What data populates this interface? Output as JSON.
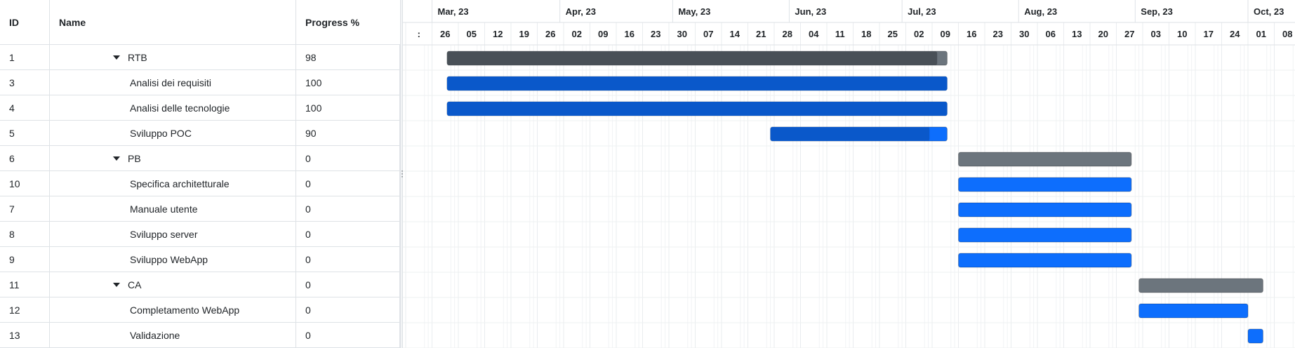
{
  "grid": {
    "headers": {
      "id": "ID",
      "name": "Name",
      "progress": "Progress %"
    },
    "rows": [
      {
        "id": "1",
        "name": "RTB",
        "progress": "98",
        "level": 0,
        "group": true
      },
      {
        "id": "3",
        "name": "Analisi dei requisiti",
        "progress": "100",
        "level": 1,
        "group": false
      },
      {
        "id": "4",
        "name": "Analisi delle tecnologie",
        "progress": "100",
        "level": 1,
        "group": false
      },
      {
        "id": "5",
        "name": "Sviluppo POC",
        "progress": "90",
        "level": 1,
        "group": false
      },
      {
        "id": "6",
        "name": "PB",
        "progress": "0",
        "level": 0,
        "group": true
      },
      {
        "id": "10",
        "name": "Specifica architetturale",
        "progress": "0",
        "level": 1,
        "group": false
      },
      {
        "id": "7",
        "name": "Manuale utente",
        "progress": "0",
        "level": 1,
        "group": false
      },
      {
        "id": "8",
        "name": "Sviluppo server",
        "progress": "0",
        "level": 1,
        "group": false
      },
      {
        "id": "9",
        "name": "Sviluppo WebApp",
        "progress": "0",
        "level": 1,
        "group": false
      },
      {
        "id": "11",
        "name": "CA",
        "progress": "0",
        "level": 0,
        "group": true
      },
      {
        "id": "12",
        "name": "Completamento WebApp",
        "progress": "0",
        "level": 1,
        "group": false
      },
      {
        "id": "13",
        "name": "Validazione",
        "progress": "0",
        "level": 1,
        "group": false
      }
    ]
  },
  "colors": {
    "group_bar": "#6c757d",
    "group_progress": "#495057",
    "task_bar": "#0d6efd",
    "task_progress": "#0a58ca",
    "grid_line": "#e9ecef",
    "weekend_fill": "#f8f9fa"
  },
  "chart_data": {
    "type": "gantt",
    "timeline": {
      "start": "2023-02-19",
      "unit": "week",
      "months": [
        {
          "label": "Mar, 23",
          "start": "2023-02-26",
          "end": "2023-03-31"
        },
        {
          "label": "Apr, 23",
          "start": "2023-04-01",
          "end": "2023-04-30"
        },
        {
          "label": "May, 23",
          "start": "2023-05-01",
          "end": "2023-05-31"
        },
        {
          "label": "Jun, 23",
          "start": "2023-06-01",
          "end": "2023-06-30"
        },
        {
          "label": "Jul, 23",
          "start": "2023-07-01",
          "end": "2023-07-31"
        },
        {
          "label": "Aug, 23",
          "start": "2023-08-01",
          "end": "2023-08-31"
        },
        {
          "label": "Sep, 23",
          "start": "2023-09-01",
          "end": "2023-09-30"
        },
        {
          "label": "Oct, 23",
          "start": "2023-10-01",
          "end": "2023-10-14"
        }
      ],
      "week_ticks": [
        "2023-02-19",
        "2023-02-26",
        "2023-03-05",
        "2023-03-12",
        "2023-03-19",
        "2023-03-26",
        "2023-04-02",
        "2023-04-09",
        "2023-04-16",
        "2023-04-23",
        "2023-04-30",
        "2023-05-07",
        "2023-05-14",
        "2023-05-21",
        "2023-05-28",
        "2023-06-04",
        "2023-06-11",
        "2023-06-18",
        "2023-06-25",
        "2023-07-02",
        "2023-07-09",
        "2023-07-16",
        "2023-07-23",
        "2023-07-30",
        "2023-08-06",
        "2023-08-13",
        "2023-08-20",
        "2023-08-27",
        "2023-09-03",
        "2023-09-10",
        "2023-09-17",
        "2023-09-24",
        "2023-10-01",
        "2023-10-08"
      ],
      "week_labels": [
        ":",
        "26",
        "05",
        "12",
        "19",
        "26",
        "02",
        "09",
        "16",
        "23",
        "30",
        "07",
        "14",
        "21",
        "28",
        "04",
        "11",
        "18",
        "25",
        "02",
        "09",
        "16",
        "23",
        "30",
        "06",
        "13",
        "20",
        "27",
        "03",
        "10",
        "17",
        "24",
        "01",
        "08"
      ]
    },
    "tasks": [
      {
        "id": "1",
        "name": "RTB",
        "start": "2023-03-02",
        "end": "2023-07-13",
        "progress": 98,
        "group": true
      },
      {
        "id": "3",
        "name": "Analisi dei requisiti",
        "start": "2023-03-02",
        "end": "2023-07-13",
        "progress": 100,
        "group": false
      },
      {
        "id": "4",
        "name": "Analisi delle tecnologie",
        "start": "2023-03-02",
        "end": "2023-07-13",
        "progress": 100,
        "group": false
      },
      {
        "id": "5",
        "name": "Sviluppo POC",
        "start": "2023-05-27",
        "end": "2023-07-13",
        "progress": 90,
        "group": false
      },
      {
        "id": "6",
        "name": "PB",
        "start": "2023-07-16",
        "end": "2023-08-31",
        "progress": 0,
        "group": true
      },
      {
        "id": "10",
        "name": "Specifica architetturale",
        "start": "2023-07-16",
        "end": "2023-08-31",
        "progress": 0,
        "group": false
      },
      {
        "id": "7",
        "name": "Manuale utente",
        "start": "2023-07-16",
        "end": "2023-08-31",
        "progress": 0,
        "group": false
      },
      {
        "id": "8",
        "name": "Sviluppo server",
        "start": "2023-07-16",
        "end": "2023-08-31",
        "progress": 0,
        "group": false
      },
      {
        "id": "9",
        "name": "Sviluppo WebApp",
        "start": "2023-07-16",
        "end": "2023-08-31",
        "progress": 0,
        "group": false
      },
      {
        "id": "11",
        "name": "CA",
        "start": "2023-09-02",
        "end": "2023-10-05",
        "progress": 0,
        "group": true
      },
      {
        "id": "12",
        "name": "Completamento WebApp",
        "start": "2023-09-02",
        "end": "2023-10-01",
        "progress": 0,
        "group": false
      },
      {
        "id": "13",
        "name": "Validazione",
        "start": "2023-10-01",
        "end": "2023-10-05",
        "progress": 0,
        "group": false
      }
    ]
  }
}
